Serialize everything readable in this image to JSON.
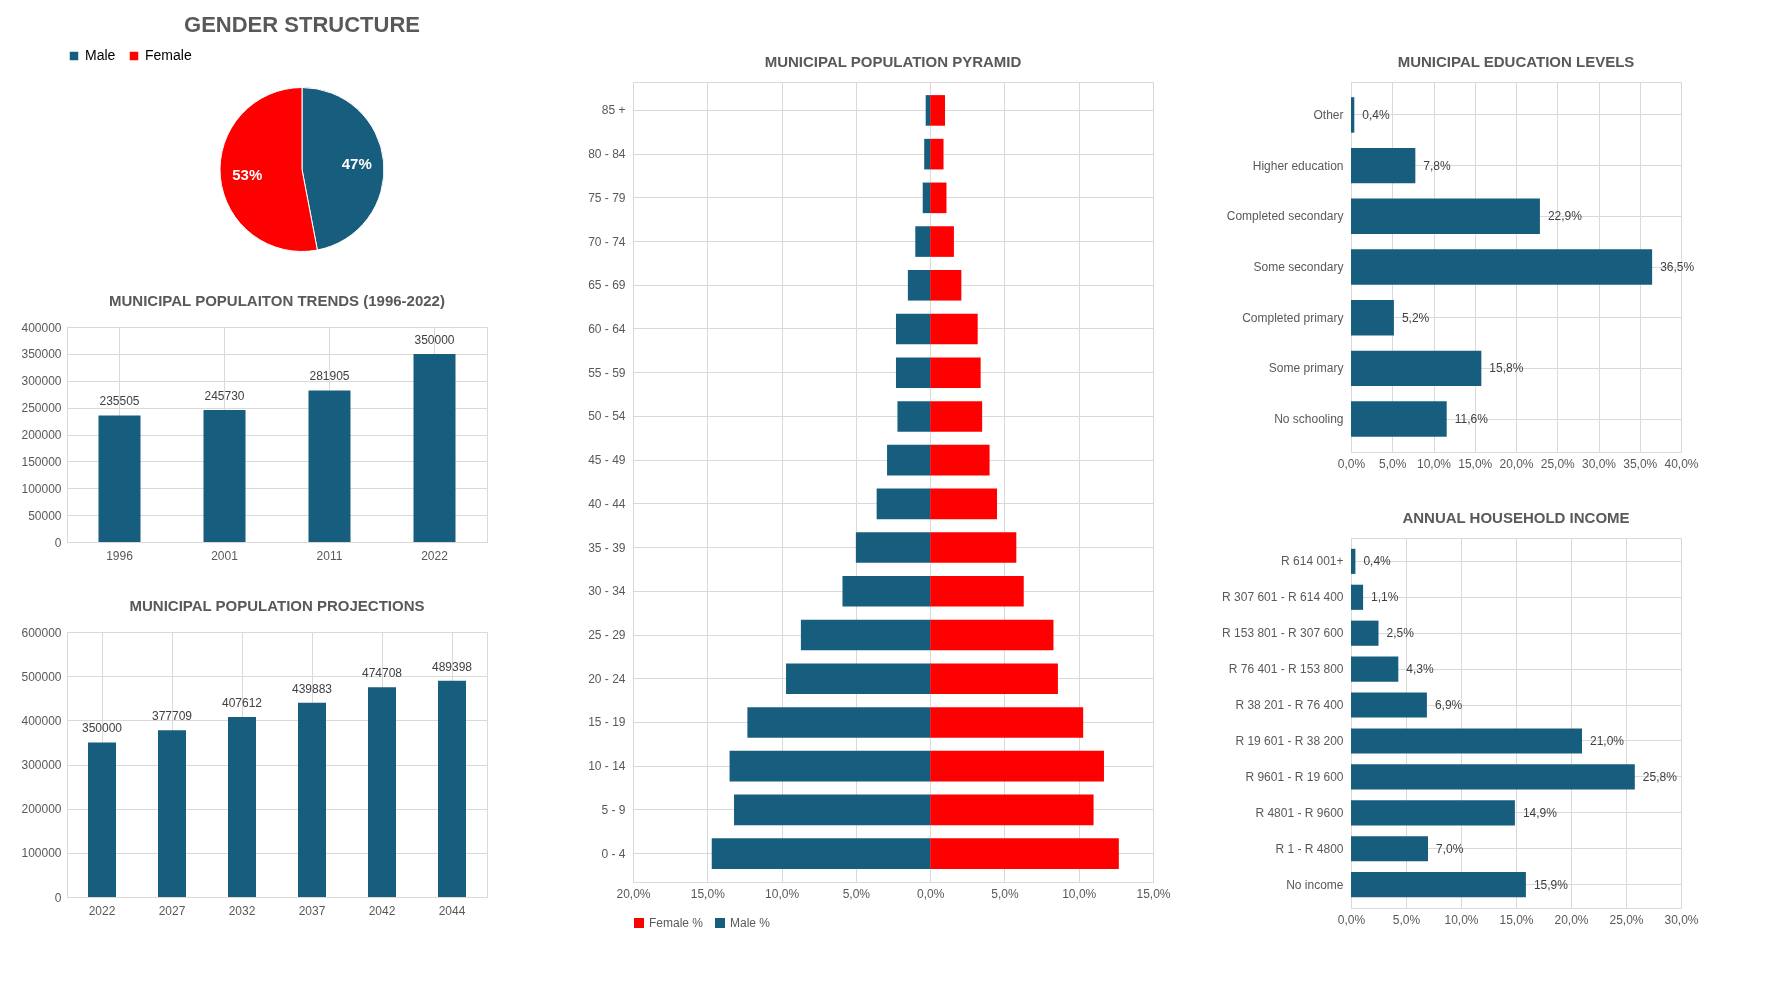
{
  "chart_data": [
    {
      "type": "pie",
      "title": "GENDER STRUCTURE",
      "categories": [
        "Male",
        "Female"
      ],
      "values": [
        47,
        53
      ],
      "colors": [
        "#175e7e",
        "#ff0000"
      ],
      "value_labels": [
        "47%",
        "53%"
      ],
      "legend": "top"
    },
    {
      "type": "bar",
      "title": "MUNICIPAL POPULAITON TRENDS (1996-2022)",
      "categories": [
        "1996",
        "2001",
        "2011",
        "2022"
      ],
      "values": [
        235505,
        245730,
        281905,
        350000
      ],
      "color": "#175e7e",
      "value_labels": [
        "235505",
        "245730",
        "281905",
        "350000"
      ],
      "ylim": [
        0,
        400000
      ],
      "yticks": [
        0,
        50000,
        100000,
        150000,
        200000,
        250000,
        300000,
        350000,
        400000
      ],
      "grid": true
    },
    {
      "type": "bar",
      "title": "MUNICIPAL POPULATION PROJECTIONS",
      "categories": [
        "2022",
        "2027",
        "2032",
        "2037",
        "2042",
        "2044"
      ],
      "values": [
        350000,
        377709,
        407612,
        439883,
        474708,
        489398
      ],
      "color": "#175e7e",
      "value_labels": [
        "350000",
        "377709",
        "407612",
        "439883",
        "474708",
        "489398"
      ],
      "ylim": [
        0,
        600000
      ],
      "yticks": [
        0,
        100000,
        200000,
        300000,
        400000,
        500000,
        600000
      ],
      "grid": true
    },
    {
      "type": "bar",
      "title": "MUNICIPAL POPULATION PYRAMID",
      "orientation": "horizontal",
      "stacked": true,
      "categories": [
        "85 +",
        "80 - 84",
        "75 - 79",
        "70 - 74",
        "65 - 69",
        "60 - 64",
        "55 - 59",
        "50 - 54",
        "45 - 49",
        "40 - 44",
        "35 - 39",
        "30 - 34",
        "25 - 29",
        "20 - 24",
        "15 - 19",
        "10 - 14",
        "5 - 9",
        "0 - 4"
      ],
      "series": [
        {
          "name": "Female %",
          "color": "#ff0000",
          "values": [
            1.0,
            0.9,
            1.1,
            1.6,
            2.1,
            3.2,
            3.4,
            3.5,
            4.0,
            4.5,
            5.8,
            6.3,
            8.3,
            8.6,
            10.3,
            11.7,
            11.0,
            12.7
          ]
        },
        {
          "name": "Male %",
          "color": "#175e7e",
          "values": [
            -0.3,
            -0.4,
            -0.5,
            -1.0,
            -1.5,
            -2.3,
            -2.3,
            -2.2,
            -2.9,
            -3.6,
            -5.0,
            -5.9,
            -8.7,
            -9.7,
            -12.3,
            -13.5,
            -13.2,
            -14.7
          ]
        }
      ],
      "xlim": [
        -20,
        15
      ],
      "xticks": [
        {
          "value": -20,
          "label": "20,0%"
        },
        {
          "value": -15,
          "label": "15,0%"
        },
        {
          "value": -10,
          "label": "10,0%"
        },
        {
          "value": -5,
          "label": "5,0%"
        },
        {
          "value": 0,
          "label": "0,0%"
        },
        {
          "value": 5,
          "label": "5,0%"
        },
        {
          "value": 10,
          "label": "10,0%"
        },
        {
          "value": 15,
          "label": "15,0%"
        }
      ],
      "grid": true,
      "legend": "bottom"
    },
    {
      "type": "bar",
      "title": "MUNICIPAL EDUCATION LEVELS",
      "orientation": "horizontal",
      "categories": [
        "Other",
        "Higher education",
        "Completed secondary",
        "Some secondary",
        "Completed primary",
        "Some primary",
        "No schooling"
      ],
      "values": [
        0.4,
        7.8,
        22.9,
        36.5,
        5.2,
        15.8,
        11.6
      ],
      "color": "#175e7e",
      "value_labels": [
        "0,4%",
        "7,8%",
        "22,9%",
        "36,5%",
        "5,2%",
        "15,8%",
        "11,6%"
      ],
      "xlim": [
        0,
        40
      ],
      "xticks": [
        {
          "value": 0,
          "label": "0,0%"
        },
        {
          "value": 5,
          "label": "5,0%"
        },
        {
          "value": 10,
          "label": "10,0%"
        },
        {
          "value": 15,
          "label": "15,0%"
        },
        {
          "value": 20,
          "label": "20,0%"
        },
        {
          "value": 25,
          "label": "25,0%"
        },
        {
          "value": 30,
          "label": "30,0%"
        },
        {
          "value": 35,
          "label": "35,0%"
        },
        {
          "value": 40,
          "label": "40,0%"
        }
      ],
      "grid": true
    },
    {
      "type": "bar",
      "title": "ANNUAL HOUSEHOLD INCOME",
      "orientation": "horizontal",
      "categories": [
        "R 614 001+",
        "R 307 601 - R 614 400",
        "R 153 801 - R 307 600",
        "R 76 401 - R 153 800",
        "R 38 201 - R 76 400",
        "R 19 601 - R 38 200",
        "R 9601 - R 19 600",
        "R 4801 - R 9600",
        "R 1 - R 4800",
        "No income"
      ],
      "values": [
        0.4,
        1.1,
        2.5,
        4.3,
        6.9,
        21.0,
        25.8,
        14.9,
        7.0,
        15.9
      ],
      "color": "#175e7e",
      "value_labels": [
        "0,4%",
        "1,1%",
        "2,5%",
        "4,3%",
        "6,9%",
        "21,0%",
        "25,8%",
        "14,9%",
        "7,0%",
        "15,9%"
      ],
      "xlim": [
        0,
        30
      ],
      "xticks": [
        {
          "value": 0,
          "label": "0,0%"
        },
        {
          "value": 5,
          "label": "5,0%"
        },
        {
          "value": 10,
          "label": "10,0%"
        },
        {
          "value": 15,
          "label": "15,0%"
        },
        {
          "value": 20,
          "label": "20,0%"
        },
        {
          "value": 25,
          "label": "25,0%"
        },
        {
          "value": 30,
          "label": "30,0%"
        }
      ],
      "grid": true
    }
  ]
}
